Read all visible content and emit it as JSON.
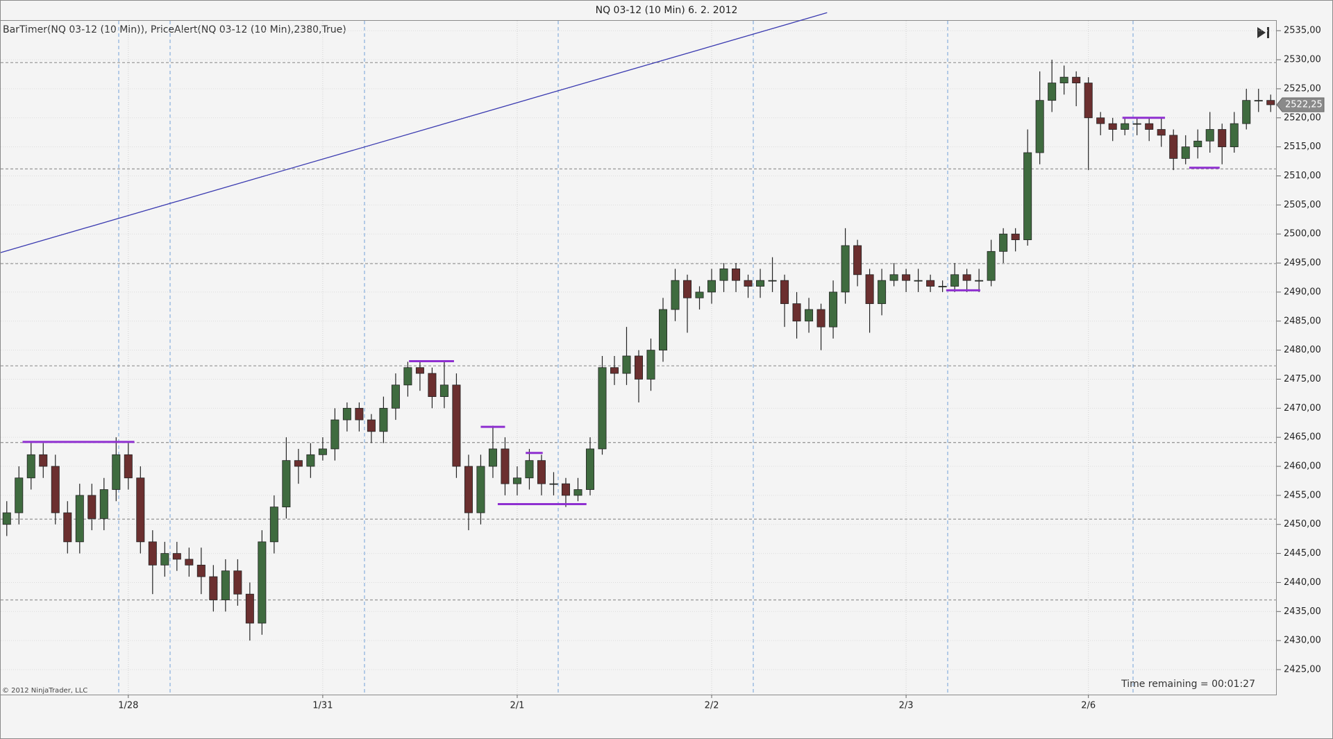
{
  "chart_data": {
    "type": "candlestick",
    "title": "NQ 03-12 (10 Min)  6. 2. 2012",
    "indicator_label": "BarTimer(NQ 03-12 (10 Min)), PriceAlert(NQ 03-12 (10 Min),2380,True)",
    "copyright": "© 2012 NinjaTrader, LLC",
    "timer_text": "Time remaining = 00:01:27",
    "last_price": {
      "value": 2522.25,
      "label": "2522,25"
    },
    "up_color": "#3f6b3f",
    "down_color": "#6b2f2f",
    "level_color": "#8e2fd0",
    "trend_color": "#3a3ab0",
    "categories": [
      null,
      null,
      null,
      null,
      null,
      null,
      null,
      null,
      null,
      null,
      "1/28",
      null,
      null,
      null,
      null,
      null,
      null,
      null,
      null,
      null,
      null,
      null,
      null,
      null,
      null,
      null,
      "1/31",
      null,
      null,
      null,
      null,
      null,
      null,
      null,
      null,
      null,
      null,
      null,
      null,
      null,
      null,
      null,
      "2/1",
      null,
      null,
      null,
      null,
      null,
      null,
      null,
      null,
      null,
      null,
      null,
      null,
      null,
      null,
      null,
      "2/2",
      null,
      null,
      null,
      null,
      null,
      null,
      null,
      null,
      null,
      null,
      null,
      null,
      null,
      null,
      null,
      "2/3",
      null,
      null,
      null,
      null,
      null,
      null,
      null,
      null,
      null,
      null,
      null,
      null,
      null,
      null,
      "2/6",
      null,
      null,
      null,
      null,
      null,
      null,
      null,
      null,
      null,
      null,
      null,
      null,
      null,
      null,
      null
    ],
    "open": [
      2450,
      2452,
      2458,
      2462,
      2460,
      2452,
      2447,
      2455,
      2451,
      2456,
      2462,
      2458,
      2447,
      2443,
      2445,
      2444,
      2443,
      2441,
      2437,
      2442,
      2438,
      2433,
      2447,
      2453,
      2461,
      2460,
      2462,
      2463,
      2468,
      2470,
      2468,
      2466,
      2470,
      2474,
      2477,
      2476,
      2472,
      2474,
      2460,
      2452,
      2460,
      2463,
      2457,
      2458,
      2461,
      2457,
      2457,
      2455,
      2456,
      2463,
      2477,
      2476,
      2479,
      2475,
      2480,
      2487,
      2492,
      2489,
      2490,
      2492,
      2494,
      2492,
      2491,
      2492,
      2492,
      2488,
      2485,
      2487,
      2484,
      2490,
      2498,
      2493,
      2488,
      2492,
      2493,
      2492,
      2492,
      2491,
      2491,
      2493,
      2492,
      2492,
      2497,
      2500,
      2499,
      2514,
      2523,
      2526,
      2527,
      2526,
      2520,
      2519,
      2518,
      2519,
      2519,
      2518,
      2517,
      2513,
      2515,
      2516,
      2518,
      2515,
      2519,
      2523,
      2523
    ],
    "high": [
      2454,
      2460,
      2464,
      2464,
      2462,
      2454,
      2457,
      2457,
      2458,
      2465,
      2464,
      2460,
      2449,
      2447,
      2447,
      2446,
      2446,
      2443,
      2444,
      2444,
      2440,
      2449,
      2455,
      2465,
      2463,
      2464,
      2465,
      2470,
      2471,
      2471,
      2469,
      2472,
      2476,
      2478,
      2478,
      2477,
      2478,
      2476,
      2462,
      2462,
      2467,
      2465,
      2460,
      2463,
      2462,
      2459,
      2458,
      2458,
      2465,
      2479,
      2479,
      2484,
      2480,
      2482,
      2489,
      2494,
      2493,
      2491,
      2494,
      2495,
      2495,
      2493,
      2494,
      2496,
      2493,
      2490,
      2489,
      2488,
      2492,
      2501,
      2499,
      2494,
      2494,
      2495,
      2494,
      2494,
      2493,
      2492,
      2495,
      2494,
      2494,
      2499,
      2501,
      2501,
      2518,
      2528,
      2530,
      2529,
      2528,
      2527,
      2521,
      2520,
      2520,
      2520,
      2520,
      2520,
      2518,
      2517,
      2518,
      2521,
      2519,
      2521,
      2525,
      2525,
      2524
    ],
    "low": [
      2448,
      2450,
      2456,
      2458,
      2450,
      2445,
      2445,
      2449,
      2449,
      2454,
      2456,
      2445,
      2438,
      2441,
      2442,
      2441,
      2438,
      2435,
      2435,
      2436,
      2430,
      2431,
      2445,
      2451,
      2457,
      2458,
      2461,
      2461,
      2466,
      2466,
      2464,
      2464,
      2468,
      2472,
      2473,
      2470,
      2470,
      2458,
      2449,
      2450,
      2458,
      2455,
      2455,
      2456,
      2455,
      2455,
      2453,
      2454,
      2455,
      2462,
      2474,
      2474,
      2471,
      2473,
      2478,
      2485,
      2483,
      2487,
      2488,
      2490,
      2490,
      2489,
      2489,
      2490,
      2484,
      2482,
      2483,
      2480,
      2482,
      2488,
      2491,
      2483,
      2486,
      2491,
      2490,
      2490,
      2490,
      2490,
      2490,
      2490,
      2490,
      2491,
      2495,
      2497,
      2498,
      2512,
      2521,
      2524,
      2522,
      2511,
      2517,
      2516,
      2517,
      2517,
      2516,
      2515,
      2511,
      2512,
      2513,
      2514,
      2512,
      2514,
      2518,
      2521,
      2521
    ],
    "close": [
      2452,
      2458,
      2462,
      2460,
      2452,
      2447,
      2455,
      2451,
      2456,
      2462,
      2458,
      2447,
      2443,
      2445,
      2444,
      2443,
      2441,
      2437,
      2442,
      2438,
      2433,
      2447,
      2453,
      2461,
      2460,
      2462,
      2463,
      2468,
      2470,
      2468,
      2466,
      2470,
      2474,
      2477,
      2476,
      2472,
      2474,
      2460,
      2452,
      2460,
      2463,
      2457,
      2458,
      2461,
      2457,
      2457,
      2455,
      2456,
      2463,
      2477,
      2476,
      2479,
      2475,
      2480,
      2487,
      2492,
      2489,
      2490,
      2492,
      2494,
      2492,
      2491,
      2492,
      2492,
      2488,
      2485,
      2487,
      2484,
      2490,
      2498,
      2493,
      2488,
      2492,
      2493,
      2492,
      2492,
      2491,
      2491,
      2493,
      2492,
      2492,
      2497,
      2500,
      2499,
      2514,
      2523,
      2526,
      2527,
      2526,
      2520,
      2519,
      2518,
      2519,
      2519,
      2518,
      2517,
      2513,
      2515,
      2516,
      2518,
      2515,
      2519,
      2523,
      2523,
      2522.25
    ],
    "level_segments": [
      {
        "x": [
          1.3,
          10.5
        ],
        "value": 2464.2
      },
      {
        "x": [
          33.1,
          36.8
        ],
        "value": 2478.1
      },
      {
        "x": [
          39.0,
          41.0
        ],
        "value": 2466.8
      },
      {
        "x": [
          42.7,
          44.1
        ],
        "value": 2462.3
      },
      {
        "x": [
          40.4,
          47.7
        ],
        "value": 2453.5
      },
      {
        "x": [
          77.3,
          80.1
        ],
        "value": 2490.3
      },
      {
        "x": [
          91.8,
          95.3
        ],
        "value": 2520.0
      },
      {
        "x": [
          97.3,
          99.8
        ],
        "value": 2511.4
      }
    ],
    "alert_lines": [
      2529.5,
      2511.2,
      2494.9,
      2477.3,
      2464.1,
      2450.9,
      2437.0
    ],
    "trend_line": {
      "x": [
        -0.5,
        67.5
      ],
      "values": [
        2496.8,
        2538.1
      ]
    },
    "ylim": [
      2420.7,
      2536.7
    ],
    "yticks": [
      {
        "value": 2425,
        "label": "2425,00"
      },
      {
        "value": 2430,
        "label": "2430,00"
      },
      {
        "value": 2435,
        "label": "2435,00"
      },
      {
        "value": 2440,
        "label": "2440,00"
      },
      {
        "value": 2445,
        "label": "2445,00"
      },
      {
        "value": 2450,
        "label": "2450,00"
      },
      {
        "value": 2455,
        "label": "2455,00"
      },
      {
        "value": 2460,
        "label": "2460,00"
      },
      {
        "value": 2465,
        "label": "2465,00"
      },
      {
        "value": 2470,
        "label": "2470,00"
      },
      {
        "value": 2475,
        "label": "2475,00"
      },
      {
        "value": 2480,
        "label": "2480,00"
      },
      {
        "value": 2485,
        "label": "2485,00"
      },
      {
        "value": 2490,
        "label": "2490,00"
      },
      {
        "value": 2495,
        "label": "2495,00"
      },
      {
        "value": 2500,
        "label": "2500,00"
      },
      {
        "value": 2505,
        "label": "2505,00"
      },
      {
        "value": 2510,
        "label": "2510,00"
      },
      {
        "value": 2515,
        "label": "2515,00"
      },
      {
        "value": 2520,
        "label": "2520,00"
      },
      {
        "value": 2525,
        "label": "2525,00"
      },
      {
        "value": 2530,
        "label": "2530,00"
      },
      {
        "value": 2535,
        "label": "2535,00"
      }
    ],
    "grid": true
  }
}
